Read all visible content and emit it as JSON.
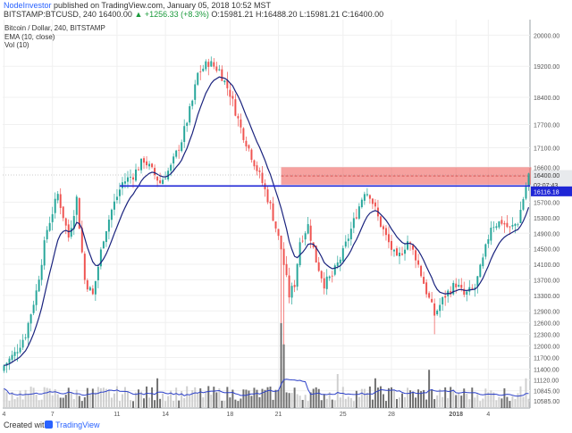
{
  "header": {
    "author": "NodeInvestor",
    "published": "published on TradingView.com, January 05, 2018 10:52 MST",
    "symbol": "BITSTAMP:BTCUSD, 240",
    "price": "16400.00",
    "change": "▲ +1256.33 (+8.3%)",
    "ohlc": "O:15981.21 H:16488.20 L:15981.21 C:16400.00"
  },
  "footer": {
    "created_with": "Created with",
    "brand": "TradingView"
  },
  "colors": {
    "up": "#26a69a",
    "down": "#ef5350",
    "ema": "#1a237e",
    "vol_up": "#cfcfcf",
    "vol_down": "#6e6e6e",
    "vol_ma": "#2d41c9",
    "zone": "#ef5350",
    "support": "#1f26d6"
  },
  "chart_data": {
    "type": "candlestick",
    "title": "Bitcoin / Dollar, 240, BITSTAMP",
    "legend": [
      "EMA (10, close)",
      "Vol (10)"
    ],
    "x_tick_labels": [
      {
        "label": "4",
        "index": 0
      },
      {
        "label": "7",
        "index": 18
      },
      {
        "label": "11",
        "index": 42
      },
      {
        "label": "14",
        "index": 60
      },
      {
        "label": "18",
        "index": 84
      },
      {
        "label": "21",
        "index": 102
      },
      {
        "label": "25",
        "index": 126
      },
      {
        "label": "28",
        "index": 144
      },
      {
        "label": "2018",
        "index": 168
      },
      {
        "label": "4",
        "index": 180
      }
    ],
    "y_ticks": [
      20000,
      19200,
      18400,
      17700,
      17100,
      16600,
      15700,
      15300,
      14900,
      14500,
      14100,
      13700,
      13300,
      12900,
      12600,
      12300,
      12000,
      11700,
      11400,
      11120,
      10845,
      10585
    ],
    "ylim": [
      10400,
      20400
    ],
    "price_label": "16400.00",
    "time_label": "02:07:43",
    "support_label": "16116.18",
    "resistance_zone": [
      16150,
      16600
    ],
    "support_level": 16116.18,
    "anchors": [
      {
        "i": 0,
        "p": 11500
      },
      {
        "i": 4,
        "p": 11800
      },
      {
        "i": 8,
        "p": 12300
      },
      {
        "i": 12,
        "p": 13400
      },
      {
        "i": 16,
        "p": 15000
      },
      {
        "i": 20,
        "p": 15900
      },
      {
        "i": 24,
        "p": 14800
      },
      {
        "i": 27,
        "p": 15800
      },
      {
        "i": 30,
        "p": 13700
      },
      {
        "i": 33,
        "p": 13300
      },
      {
        "i": 37,
        "p": 14800
      },
      {
        "i": 40,
        "p": 15500
      },
      {
        "i": 44,
        "p": 16200
      },
      {
        "i": 48,
        "p": 16400
      },
      {
        "i": 52,
        "p": 16800
      },
      {
        "i": 56,
        "p": 16400
      },
      {
        "i": 58,
        "p": 16200
      },
      {
        "i": 62,
        "p": 16600
      },
      {
        "i": 66,
        "p": 17300
      },
      {
        "i": 70,
        "p": 18300
      },
      {
        "i": 72,
        "p": 19000
      },
      {
        "i": 76,
        "p": 19300
      },
      {
        "i": 80,
        "p": 19100
      },
      {
        "i": 84,
        "p": 18500
      },
      {
        "i": 88,
        "p": 17600
      },
      {
        "i": 92,
        "p": 16900
      },
      {
        "i": 96,
        "p": 16200
      },
      {
        "i": 99,
        "p": 15600
      },
      {
        "i": 103,
        "p": 14500
      },
      {
        "i": 106,
        "p": 13300
      },
      {
        "i": 108,
        "p": 13600
      },
      {
        "i": 110,
        "p": 14700
      },
      {
        "i": 113,
        "p": 15100
      },
      {
        "i": 116,
        "p": 14200
      },
      {
        "i": 119,
        "p": 13600
      },
      {
        "i": 122,
        "p": 13800
      },
      {
        "i": 126,
        "p": 14400
      },
      {
        "i": 130,
        "p": 15200
      },
      {
        "i": 134,
        "p": 16000
      },
      {
        "i": 136,
        "p": 15900
      },
      {
        "i": 139,
        "p": 15300
      },
      {
        "i": 142,
        "p": 14800
      },
      {
        "i": 146,
        "p": 14200
      },
      {
        "i": 150,
        "p": 14700
      },
      {
        "i": 153,
        "p": 14300
      },
      {
        "i": 157,
        "p": 13400
      },
      {
        "i": 160,
        "p": 12800
      },
      {
        "i": 164,
        "p": 13300
      },
      {
        "i": 168,
        "p": 13600
      },
      {
        "i": 171,
        "p": 13300
      },
      {
        "i": 175,
        "p": 13500
      },
      {
        "i": 178,
        "p": 14200
      },
      {
        "i": 181,
        "p": 15100
      },
      {
        "i": 185,
        "p": 15200
      },
      {
        "i": 188,
        "p": 15000
      },
      {
        "i": 191,
        "p": 15200
      },
      {
        "i": 193,
        "p": 15800
      },
      {
        "i": 195,
        "p": 16400
      }
    ],
    "volume_peaks": [
      {
        "i": 103,
        "v": 1.0
      },
      {
        "i": 104,
        "v": 0.75
      },
      {
        "i": 57,
        "v": 0.35
      },
      {
        "i": 124,
        "v": 0.4
      },
      {
        "i": 138,
        "v": 0.35
      },
      {
        "i": 158,
        "v": 0.45
      },
      {
        "i": 194,
        "v": 0.35
      }
    ]
  }
}
